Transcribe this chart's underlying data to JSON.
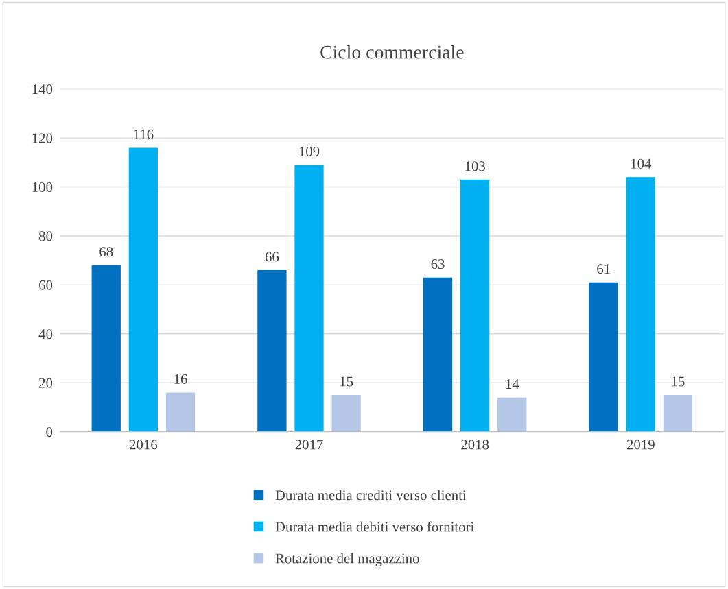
{
  "chart_data": {
    "type": "bar",
    "title": "Ciclo commerciale",
    "categories": [
      "2016",
      "2017",
      "2018",
      "2019"
    ],
    "series": [
      {
        "name": "Durata media crediti verso clienti",
        "color": "#0070c0",
        "values": [
          68,
          66,
          63,
          61
        ]
      },
      {
        "name": "Durata media debiti verso fornitori",
        "color": "#00b0f0",
        "values": [
          116,
          109,
          103,
          104
        ]
      },
      {
        "name": "Rotazione del magazzino",
        "color": "#b4c7e7",
        "values": [
          16,
          15,
          14,
          15
        ]
      }
    ],
    "ylim": [
      0,
      140
    ],
    "yticks": [
      0,
      20,
      40,
      60,
      80,
      100,
      120,
      140
    ],
    "grid": "y",
    "legend": "bottom",
    "data_labels": true
  }
}
